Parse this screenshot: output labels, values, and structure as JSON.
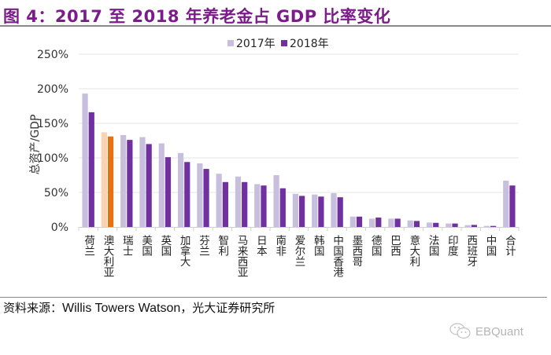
{
  "header": {
    "title": "图 4：2017 至 2018 年养老金占 GDP 比率变化"
  },
  "footer": {
    "source_prefix": "资料来源：",
    "source_en": "Willis Towers Watson",
    "source_suffix": "，光大证券研究所",
    "watermark_icon": "wechat-icon",
    "watermark_text": "EBQuant"
  },
  "colors": {
    "y2017": "#c8bedd",
    "y2018": "#7030a0",
    "highlight2017": "#fcd3b0",
    "highlight2018": "#e8710f",
    "title": "#7b1c8a"
  },
  "chart_data": {
    "type": "bar",
    "title": "2017 至 2018 年养老金占 GDP 比率变化",
    "xlabel": "",
    "ylabel": "总资产/GDP",
    "ylim": [
      0,
      250
    ],
    "yticks": [
      "0%",
      "50%",
      "100%",
      "150%",
      "200%",
      "250%"
    ],
    "ytick_values": [
      0,
      50,
      100,
      150,
      200,
      250
    ],
    "grid": true,
    "legend_position": "top-center",
    "highlight_category": "澳大利亚",
    "categories": [
      "荷兰",
      "澳大利亚",
      "瑞士",
      "美国",
      "英国",
      "加拿大",
      "芬兰",
      "智利",
      "马来西亚",
      "日本",
      "南非",
      "爱尔兰",
      "韩国",
      "中国香港",
      "墨西哥",
      "德国",
      "巴西",
      "意大利",
      "法国",
      "印度",
      "西班牙",
      "中国",
      "合计"
    ],
    "series": [
      {
        "name": "2017年",
        "values": [
          193,
          137,
          133,
          130,
          121,
          107,
          92,
          77,
          73,
          62,
          75,
          48,
          47,
          49,
          15,
          12,
          12,
          9.5,
          6.4,
          5,
          2.7,
          1.5,
          67
        ]
      },
      {
        "name": "2018年",
        "values": [
          166,
          131,
          126,
          120,
          101,
          94,
          84,
          65,
          65,
          60,
          56,
          45,
          44,
          43,
          15,
          13.6,
          12,
          8.7,
          6,
          5,
          3,
          1.5,
          60
        ]
      }
    ]
  }
}
